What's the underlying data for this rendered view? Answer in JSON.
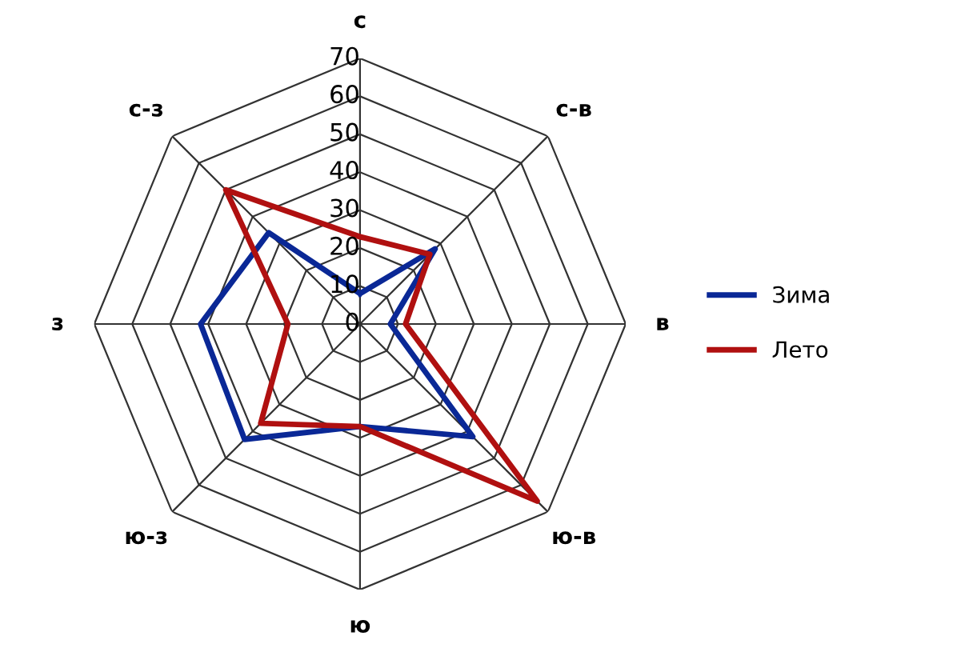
{
  "chart_data": {
    "type": "radar",
    "categories": [
      "с",
      "с-в",
      "в",
      "ю-в",
      "ю",
      "ю-з",
      "з",
      "с-з"
    ],
    "series": [
      {
        "name": "Зима",
        "color": "#0a2896",
        "values": [
          8,
          28,
          8,
          42,
          27,
          43,
          42,
          34
        ]
      },
      {
        "name": "Лето",
        "color": "#b01010",
        "values": [
          23,
          26,
          12,
          66,
          27,
          37,
          19,
          50
        ]
      }
    ],
    "ylim": [
      0,
      70
    ],
    "yticks": [
      0,
      10,
      20,
      30,
      40,
      50,
      60,
      70
    ],
    "grid": true,
    "legend": "right",
    "marker": "none"
  }
}
